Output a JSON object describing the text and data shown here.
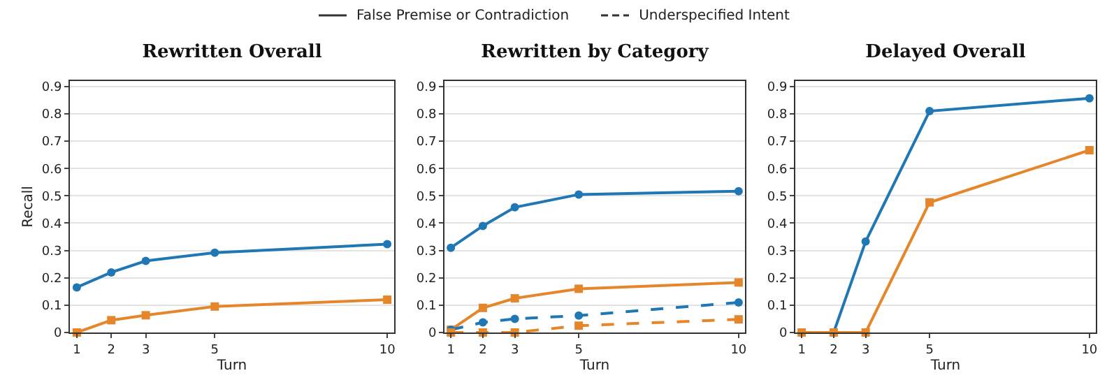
{
  "chart_data": [
    {
      "type": "line",
      "title": "Rewritten Overall",
      "xlabel": "Turn",
      "ylabel": "Recall",
      "annotations": [
        "False Premise or Contradiction",
        "Underspecified Intent"
      ],
      "x": [
        1,
        2,
        3,
        5,
        10
      ],
      "xlim": [
        0.8,
        10.2
      ],
      "xticks": [
        1,
        2,
        3,
        5,
        10
      ],
      "ylim": [
        0,
        0.92
      ],
      "yticks": [
        0,
        0.1,
        0.2,
        0.3,
        0.4,
        0.5,
        0.6,
        0.7,
        0.8,
        0.9
      ],
      "grid": "y",
      "line_style": "solid",
      "series": [
        {
          "color": "#e6862b",
          "marker": "square",
          "values": [
            0,
            0.045,
            0.063,
            0.095,
            0.12
          ]
        },
        {
          "color": "#1f77b4",
          "marker": "circle",
          "values": [
            0.165,
            0.22,
            0.262,
            0.292,
            0.323
          ]
        }
      ]
    },
    {
      "type": "line",
      "title": "Rewritten by Category",
      "xlabel": "Turn",
      "x": [
        1,
        2,
        3,
        5,
        10
      ],
      "xlim": [
        0.8,
        10.2
      ],
      "xticks": [
        1,
        2,
        3,
        5,
        10
      ],
      "ylim": [
        0,
        0.92
      ],
      "yticks": [
        0,
        0.1,
        0.2,
        0.3,
        0.4,
        0.5,
        0.6,
        0.7,
        0.8,
        0.9
      ],
      "grid": "y",
      "series": [
        {
          "color": "#1f77b4",
          "marker": "circle",
          "line_style": "solid",
          "values": [
            0.31,
            0.39,
            0.458,
            0.505,
            0.517
          ]
        },
        {
          "color": "#e6862b",
          "marker": "square",
          "line_style": "solid",
          "values": [
            0.01,
            0.09,
            0.125,
            0.16,
            0.183
          ]
        },
        {
          "color": "#1f77b4",
          "marker": "circle",
          "line_style": "dashed",
          "values": [
            0.01,
            0.037,
            0.05,
            0.062,
            0.11
          ]
        },
        {
          "color": "#e6862b",
          "marker": "square",
          "line_style": "dashed",
          "values": [
            0,
            0,
            0,
            0.025,
            0.048
          ]
        }
      ]
    },
    {
      "type": "line",
      "title": "Delayed Overall",
      "xlabel": "Turn",
      "x": [
        1,
        2,
        3,
        5,
        10
      ],
      "xlim": [
        0.8,
        10.2
      ],
      "xticks": [
        1,
        2,
        3,
        5,
        10
      ],
      "ylim": [
        0,
        0.92
      ],
      "yticks": [
        0,
        0.1,
        0.2,
        0.3,
        0.4,
        0.5,
        0.6,
        0.7,
        0.8,
        0.9
      ],
      "grid": "y",
      "line_style": "solid",
      "series": [
        {
          "color": "#1f77b4",
          "marker": "circle",
          "values": [
            0,
            0,
            0.333,
            0.81,
            0.857
          ]
        },
        {
          "color": "#e6862b",
          "marker": "square",
          "values": [
            0,
            0,
            0,
            0.476,
            0.667
          ]
        }
      ]
    }
  ]
}
